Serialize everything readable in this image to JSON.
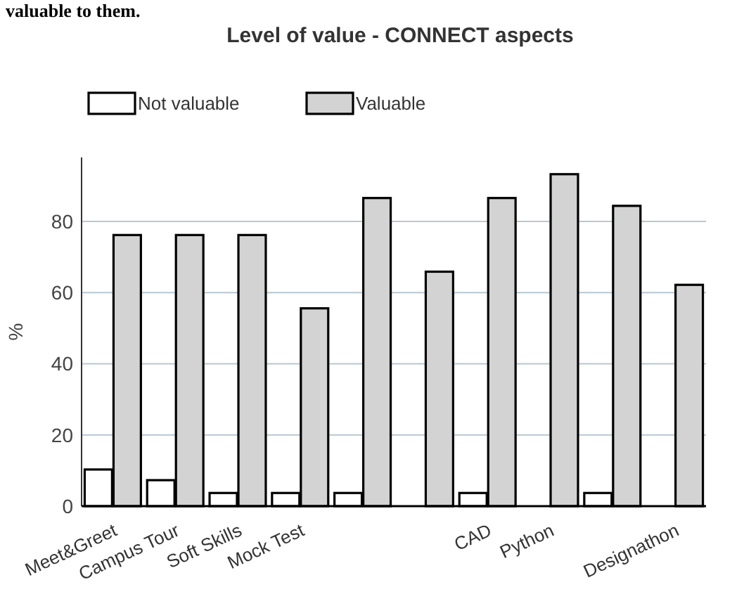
{
  "chart_data": {
    "type": "bar",
    "title": "Level of value - CONNECT aspects",
    "ylabel": "%",
    "annotations": [
      "valuable to them."
    ],
    "categories": [
      "Meet&Greet",
      "Campus Tour",
      "Soft Skills",
      "Mock Test",
      null,
      null,
      "CAD",
      "Python",
      null,
      "Designathon"
    ],
    "series": [
      {
        "name": "Not valuable",
        "color": "#ffffff",
        "values": [
          10.3,
          7.3,
          3.7,
          3.7,
          3.7,
          0,
          3.7,
          0,
          3.7,
          0
        ]
      },
      {
        "name": "Valuable",
        "color": "#d3d3d3",
        "values": [
          76.2,
          76.2,
          76.2,
          55.6,
          86.6,
          65.9,
          86.6,
          93.3,
          84.4,
          62.2
        ]
      }
    ],
    "ylim": [
      0,
      98
    ],
    "yticks": [
      0,
      20,
      40,
      60,
      80
    ],
    "grid": "y",
    "legend": "top left"
  }
}
